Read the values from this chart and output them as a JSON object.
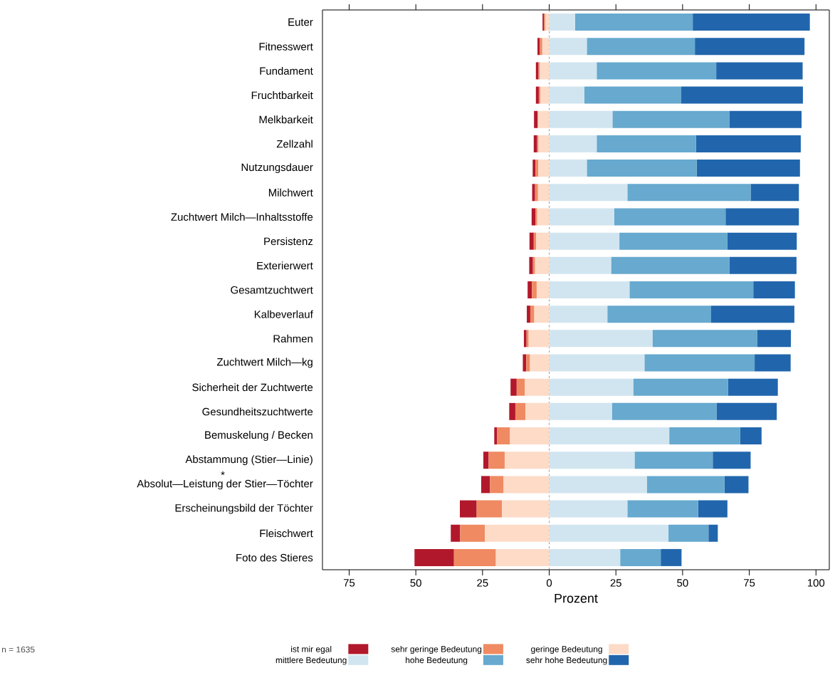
{
  "chart_data": {
    "type": "bar",
    "orientation": "horizontal",
    "stacked": true,
    "categories": [
      "Euter",
      "Fitnesswert",
      "Fundament",
      "Fruchtbarkeit",
      "Melkbarkeit",
      "Zellzahl",
      "Nutzungsdauer",
      "Milchwert",
      "Zuchtwert Milch—Inhaltsstoffe",
      "Persistenz",
      "Exterierwert",
      "Gesamtzuchtwert",
      "Kalbeverlauf",
      "Rahmen",
      "Zuchtwert Milch—kg",
      "Sicherheit der Zuchtwerte",
      "Gesundheitszuchtwerte",
      "Bemuskelung / Becken",
      "Abstammung (Stier—Linie)",
      "Absolut—Leistung der Stier—Töchter",
      "Erscheinungsbild der Töchter",
      "Fleischwert",
      "Foto des Stieres"
    ],
    "series": [
      {
        "name": "geringe Bedeutung",
        "color": "#fddbc7",
        "values": [
          -1.5,
          -2.6,
          -3.5,
          -3.3,
          -4.2,
          -4.0,
          -4.1,
          -4.2,
          -4.5,
          -4.9,
          -5.3,
          -4.7,
          -5.6,
          -7.7,
          -7.2,
          -9.1,
          -8.9,
          -14.7,
          -16.7,
          -17.1,
          -17.7,
          -24.1,
          -20.0
        ]
      },
      {
        "name": "sehr geringe Bedeutung",
        "color": "#ef8a62",
        "values": [
          -0.4,
          -0.9,
          -0.5,
          -0.6,
          -0.2,
          -0.5,
          -1.0,
          -1.1,
          -0.6,
          -0.9,
          -0.8,
          -1.8,
          -1.5,
          -0.8,
          -1.4,
          -3.1,
          -3.8,
          -4.8,
          -6.0,
          -5.1,
          -9.5,
          -9.3,
          -15.7
        ]
      },
      {
        "name": "ist mir egal",
        "color": "#b2182b",
        "values": [
          -0.6,
          -0.9,
          -1.0,
          -1.1,
          -1.3,
          -1.3,
          -1.1,
          -1.1,
          -1.5,
          -1.6,
          -1.4,
          -1.6,
          -1.3,
          -1.0,
          -1.3,
          -2.3,
          -2.3,
          -1.1,
          -2.0,
          -3.3,
          -6.3,
          -3.5,
          -14.8
        ]
      },
      {
        "name": "mittlere Bedeutung",
        "color": "#d1e5f0",
        "values": [
          9.7,
          14.1,
          17.8,
          13.2,
          23.7,
          17.8,
          14.1,
          29.3,
          24.4,
          26.3,
          23.2,
          30.1,
          21.8,
          38.7,
          35.7,
          31.5,
          23.5,
          45.0,
          32.0,
          36.6,
          29.3,
          44.7,
          26.6
        ]
      },
      {
        "name": "hohe Bedeutung",
        "color": "#67a9cf",
        "values": [
          44.1,
          40.5,
          44.8,
          36.3,
          43.8,
          37.2,
          41.2,
          46.2,
          41.7,
          40.5,
          44.4,
          46.4,
          38.9,
          39.2,
          41.3,
          35.5,
          39.2,
          26.6,
          29.3,
          29.1,
          26.5,
          15.0,
          15.2
        ]
      },
      {
        "name": "sehr hohe Bedeutung",
        "color": "#2166ac",
        "values": [
          43.9,
          41.1,
          32.4,
          45.6,
          27.1,
          39.3,
          38.7,
          18.1,
          27.5,
          26.0,
          25.1,
          15.6,
          31.2,
          12.7,
          13.5,
          18.7,
          22.6,
          8.0,
          14.2,
          9.0,
          11.0,
          3.5,
          7.8
        ]
      }
    ],
    "xlim": [
      -85,
      105
    ],
    "xticks": [
      {
        "value": -75,
        "label": "75"
      },
      {
        "value": -50,
        "label": "50"
      },
      {
        "value": -25,
        "label": "25"
      },
      0,
      25,
      50,
      75,
      100
    ],
    "xlabel": "Prozent",
    "ref_lines": [
      {
        "axis": "x",
        "value": 0,
        "color": "#808080",
        "line_style": "dashed"
      }
    ],
    "legend": "bottom",
    "annotations": [
      "n = 1635",
      "*"
    ]
  }
}
